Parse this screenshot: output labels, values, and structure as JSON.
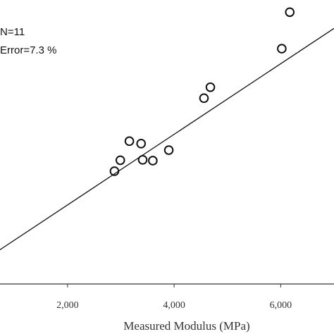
{
  "chart_data": {
    "type": "scatter",
    "annotations": {
      "n_text": "N=11",
      "error_text": "Error=7.3 %"
    },
    "xlabel": "Measured Modulus (MPa)",
    "xlim": [
      600,
      7000
    ],
    "ylim": [
      0,
      7000
    ],
    "x_ticks": [
      {
        "value": 2000,
        "label": "2,000"
      },
      {
        "value": 4000,
        "label": "4,000"
      },
      {
        "value": 6000,
        "label": "6,000"
      }
    ],
    "grid": false,
    "points": [
      {
        "x": 2880,
        "y": 2780
      },
      {
        "x": 2990,
        "y": 3050
      },
      {
        "x": 3160,
        "y": 3520
      },
      {
        "x": 3380,
        "y": 3460
      },
      {
        "x": 3410,
        "y": 3060
      },
      {
        "x": 3600,
        "y": 3040
      },
      {
        "x": 3900,
        "y": 3300
      },
      {
        "x": 4560,
        "y": 4580
      },
      {
        "x": 4680,
        "y": 4850
      },
      {
        "x": 6020,
        "y": 5800
      },
      {
        "x": 6170,
        "y": 6700
      }
    ],
    "fit_line": {
      "x": [
        600,
        7000
      ],
      "y": [
        730,
        6300
      ]
    },
    "colors": {
      "marker_stroke": "#111111",
      "line": "#111111",
      "axis": "#333333"
    }
  }
}
